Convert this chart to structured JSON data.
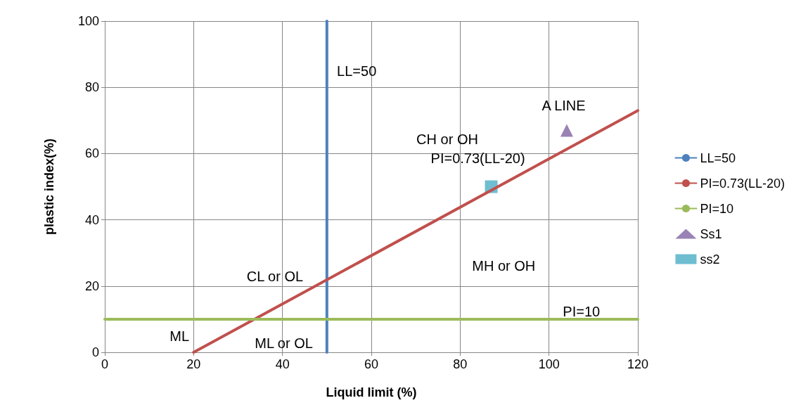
{
  "chart_data": {
    "type": "line",
    "xlabel": "Liquid limit (%)",
    "ylabel": "plastic index(%)",
    "xlim": [
      0,
      120
    ],
    "xticks": [
      0,
      20,
      40,
      60,
      80,
      100,
      120
    ],
    "ylim": [
      0,
      100
    ],
    "yticks": [
      0,
      20,
      40,
      60,
      80,
      100
    ],
    "grid": true,
    "legend": "right",
    "marker": "none",
    "series": [
      {
        "name": "LL=50",
        "color": "#4f81bd",
        "x": [
          50,
          50
        ],
        "values": [
          0,
          100
        ]
      },
      {
        "name": "PI=0.73(LL-20)",
        "color": "#c0504d",
        "x": [
          20,
          120
        ],
        "values": [
          0,
          73
        ]
      },
      {
        "name": "PI=10",
        "color": "#9bbb59",
        "x": [
          0,
          120
        ],
        "values": [
          10,
          10
        ]
      },
      {
        "name": "Ss1",
        "type": "scatter",
        "marker": "triangle",
        "color": "#8064a2",
        "x": [
          104
        ],
        "values": [
          67
        ]
      },
      {
        "name": "ss2",
        "type": "scatter",
        "marker": "square",
        "color": "#4bacc6",
        "x": [
          87
        ],
        "values": [
          50
        ]
      }
    ],
    "annotations": [
      "LL=50",
      "A LINE",
      "CH or OH",
      "PI=0.73(LL-20)",
      "MH or OH",
      "CL or OL",
      "PI=10",
      "ML",
      "ML or OL"
    ]
  }
}
